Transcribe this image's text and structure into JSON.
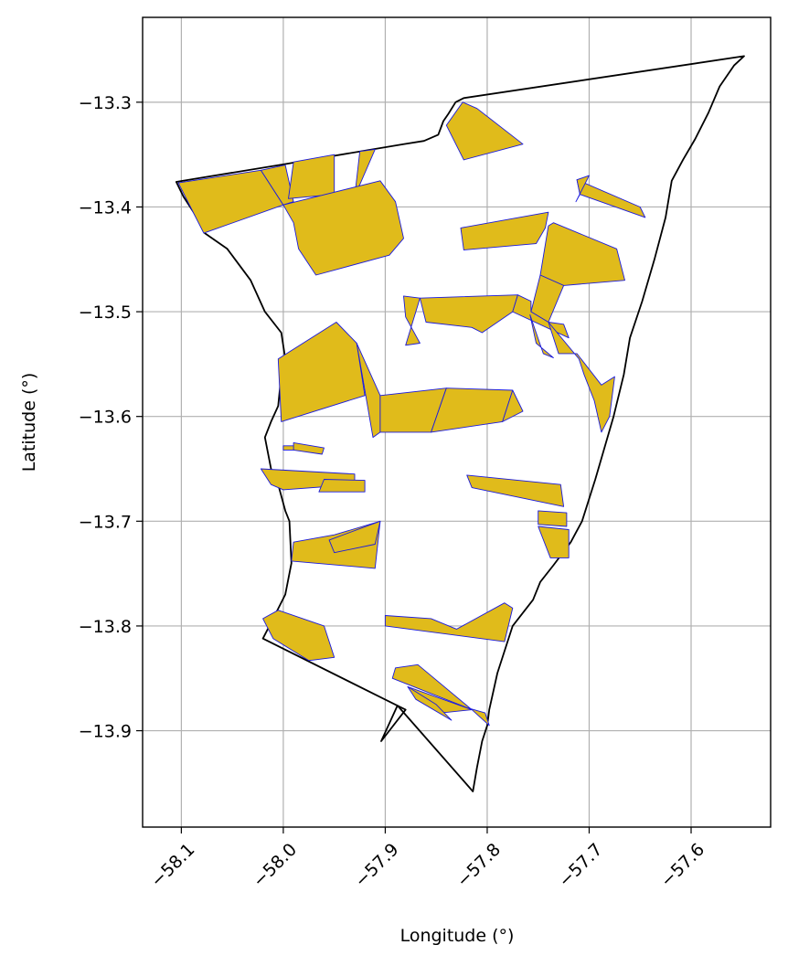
{
  "axes": {
    "x_label": "Longitude (°)",
    "y_label": "Latitude (°)",
    "x_ticks": [
      {
        "value": -58.1,
        "label": "−58.1"
      },
      {
        "value": -58.0,
        "label": "−58.0"
      },
      {
        "value": -57.9,
        "label": "−57.9"
      },
      {
        "value": -57.8,
        "label": "−57.8"
      },
      {
        "value": -57.7,
        "label": "−57.7"
      },
      {
        "value": -57.6,
        "label": "−57.6"
      }
    ],
    "y_ticks": [
      {
        "value": -13.3,
        "label": "−13.3"
      },
      {
        "value": -13.4,
        "label": "−13.4"
      },
      {
        "value": -13.5,
        "label": "−13.5"
      },
      {
        "value": -13.6,
        "label": "−13.6"
      },
      {
        "value": -13.7,
        "label": "−13.7"
      },
      {
        "value": -13.8,
        "label": "−13.8"
      },
      {
        "value": -13.9,
        "label": "−13.9"
      }
    ],
    "xlim": [
      -58.138,
      -57.522
    ],
    "ylim": [
      -13.992,
      -13.219
    ],
    "grid": true,
    "x_tick_rotation_deg": 45
  },
  "colors": {
    "boundary": "#000000",
    "parcel_fill": "#e0bb1b",
    "parcel_edge": "#1a1adf",
    "grid": "#b0b0b0"
  },
  "boundary": [
    [
      -58.105,
      -13.376
    ],
    [
      -57.998,
      -13.359
    ],
    [
      -57.882,
      -13.34
    ],
    [
      -57.862,
      -13.337
    ],
    [
      -57.848,
      -13.331
    ],
    [
      -57.843,
      -13.318
    ],
    [
      -57.838,
      -13.311
    ],
    [
      -57.831,
      -13.3
    ],
    [
      -57.823,
      -13.296
    ],
    [
      -57.548,
      -13.256
    ],
    [
      -57.558,
      -13.265
    ],
    [
      -57.572,
      -13.285
    ],
    [
      -57.583,
      -13.31
    ],
    [
      -57.596,
      -13.335
    ],
    [
      -57.608,
      -13.355
    ],
    [
      -57.619,
      -13.375
    ],
    [
      -57.625,
      -13.41
    ],
    [
      -57.636,
      -13.45
    ],
    [
      -57.648,
      -13.49
    ],
    [
      -57.66,
      -13.525
    ],
    [
      -57.666,
      -13.56
    ],
    [
      -57.676,
      -13.6
    ],
    [
      -57.688,
      -13.64
    ],
    [
      -57.694,
      -13.66
    ],
    [
      -57.707,
      -13.7
    ],
    [
      -57.718,
      -13.72
    ],
    [
      -57.735,
      -13.742
    ],
    [
      -57.748,
      -13.758
    ],
    [
      -57.755,
      -13.775
    ],
    [
      -57.775,
      -13.8
    ],
    [
      -57.79,
      -13.845
    ],
    [
      -57.798,
      -13.88
    ],
    [
      -57.8,
      -13.895
    ],
    [
      -57.805,
      -13.91
    ],
    [
      -57.81,
      -13.935
    ],
    [
      -57.814,
      -13.958
    ],
    [
      -57.888,
      -13.876
    ],
    [
      -57.904,
      -13.91
    ],
    [
      -57.88,
      -13.88
    ],
    [
      -58.02,
      -13.812
    ],
    [
      -58.01,
      -13.793
    ],
    [
      -57.998,
      -13.77
    ],
    [
      -57.992,
      -13.74
    ],
    [
      -57.994,
      -13.7
    ],
    [
      -57.998,
      -13.69
    ],
    [
      -58.005,
      -13.665
    ],
    [
      -58.012,
      -13.65
    ],
    [
      -58.018,
      -13.62
    ],
    [
      -58.012,
      -13.605
    ],
    [
      -58.005,
      -13.59
    ],
    [
      -58.002,
      -13.56
    ],
    [
      -57.998,
      -13.545
    ],
    [
      -58.002,
      -13.52
    ],
    [
      -58.018,
      -13.5
    ],
    [
      -58.032,
      -13.47
    ],
    [
      -58.055,
      -13.44
    ],
    [
      -58.077,
      -13.425
    ],
    [
      -58.088,
      -13.405
    ],
    [
      -58.098,
      -13.39
    ],
    [
      -58.105,
      -13.376
    ]
  ],
  "parcels": [
    [
      [
        -58.103,
        -13.377
      ],
      [
        -58.022,
        -13.365
      ],
      [
        -58.0,
        -13.398
      ],
      [
        -58.078,
        -13.425
      ]
    ],
    [
      [
        -58.022,
        -13.365
      ],
      [
        -57.998,
        -13.36
      ],
      [
        -57.99,
        -13.395
      ],
      [
        -58.0,
        -13.398
      ]
    ],
    [
      [
        -57.99,
        -13.357
      ],
      [
        -57.95,
        -13.35
      ],
      [
        -57.95,
        -13.388
      ],
      [
        -57.995,
        -13.392
      ]
    ],
    [
      [
        -57.925,
        -13.347
      ],
      [
        -57.91,
        -13.345
      ],
      [
        -57.93,
        -13.39
      ]
    ],
    [
      [
        -58.0,
        -13.398
      ],
      [
        -57.905,
        -13.375
      ],
      [
        -57.89,
        -13.395
      ],
      [
        -57.882,
        -13.43
      ],
      [
        -57.896,
        -13.446
      ],
      [
        -57.968,
        -13.465
      ],
      [
        -57.985,
        -13.44
      ],
      [
        -57.99,
        -13.415
      ]
    ],
    [
      [
        -57.84,
        -13.322
      ],
      [
        -57.824,
        -13.3
      ],
      [
        -57.81,
        -13.306
      ],
      [
        -57.765,
        -13.34
      ],
      [
        -57.823,
        -13.355
      ]
    ],
    [
      [
        -57.826,
        -13.42
      ],
      [
        -57.74,
        -13.405
      ],
      [
        -57.743,
        -13.42
      ],
      [
        -57.752,
        -13.435
      ],
      [
        -57.823,
        -13.441
      ]
    ],
    [
      [
        -57.712,
        -13.374
      ],
      [
        -57.65,
        -13.4
      ],
      [
        -57.645,
        -13.41
      ],
      [
        -57.709,
        -13.388
      ]
    ],
    [
      [
        -57.7,
        -13.37
      ],
      [
        -57.712,
        -13.374
      ],
      [
        -57.709,
        -13.388
      ],
      [
        -57.713,
        -13.395
      ]
    ],
    [
      [
        -57.735,
        -13.415
      ],
      [
        -57.74,
        -13.418
      ],
      [
        -57.748,
        -13.465
      ],
      [
        -57.725,
        -13.475
      ],
      [
        -57.665,
        -13.47
      ],
      [
        -57.673,
        -13.44
      ]
    ],
    [
      [
        -57.748,
        -13.465
      ],
      [
        -57.757,
        -13.5
      ],
      [
        -57.74,
        -13.51
      ],
      [
        -57.725,
        -13.475
      ]
    ],
    [
      [
        -57.866,
        -13.487
      ],
      [
        -57.882,
        -13.485
      ],
      [
        -57.88,
        -13.505
      ],
      [
        -57.866,
        -13.53
      ],
      [
        -57.88,
        -13.532
      ]
    ],
    [
      [
        -57.866,
        -13.487
      ],
      [
        -57.77,
        -13.484
      ],
      [
        -57.775,
        -13.5
      ],
      [
        -57.805,
        -13.52
      ],
      [
        -57.815,
        -13.515
      ],
      [
        -57.86,
        -13.51
      ]
    ],
    [
      [
        -57.77,
        -13.484
      ],
      [
        -57.757,
        -13.49
      ],
      [
        -57.757,
        -13.5
      ],
      [
        -57.74,
        -13.51
      ],
      [
        -57.725,
        -13.512
      ],
      [
        -57.72,
        -13.525
      ],
      [
        -57.775,
        -13.5
      ]
    ],
    [
      [
        -57.758,
        -13.503
      ],
      [
        -57.745,
        -13.54
      ],
      [
        -57.735,
        -13.544
      ],
      [
        -57.752,
        -13.53
      ]
    ],
    [
      [
        -57.74,
        -13.51
      ],
      [
        -57.73,
        -13.54
      ],
      [
        -57.712,
        -13.54
      ],
      [
        -57.688,
        -13.57
      ],
      [
        -57.675,
        -13.562
      ],
      [
        -57.68,
        -13.6
      ],
      [
        -57.688,
        -13.615
      ],
      [
        -57.695,
        -13.585
      ],
      [
        -57.705,
        -13.56
      ],
      [
        -57.71,
        -13.545
      ]
    ],
    [
      [
        -58.005,
        -13.545
      ],
      [
        -57.948,
        -13.51
      ],
      [
        -57.928,
        -13.53
      ],
      [
        -57.92,
        -13.58
      ],
      [
        -58.002,
        -13.605
      ]
    ],
    [
      [
        -57.928,
        -13.53
      ],
      [
        -57.905,
        -13.58
      ],
      [
        -57.905,
        -13.615
      ],
      [
        -57.912,
        -13.62
      ]
    ],
    [
      [
        -57.905,
        -13.58
      ],
      [
        -57.84,
        -13.573
      ],
      [
        -57.855,
        -13.615
      ],
      [
        -57.905,
        -13.615
      ]
    ],
    [
      [
        -57.84,
        -13.573
      ],
      [
        -57.775,
        -13.575
      ],
      [
        -57.785,
        -13.605
      ],
      [
        -57.855,
        -13.615
      ]
    ],
    [
      [
        -57.775,
        -13.575
      ],
      [
        -57.765,
        -13.595
      ],
      [
        -57.785,
        -13.605
      ]
    ],
    [
      [
        -58.0,
        -13.628
      ],
      [
        -57.98,
        -13.628
      ],
      [
        -57.98,
        -13.632
      ],
      [
        -58.0,
        -13.632
      ]
    ],
    [
      [
        -57.99,
        -13.625
      ],
      [
        -57.96,
        -13.63
      ],
      [
        -57.962,
        -13.636
      ],
      [
        -57.99,
        -13.632
      ]
    ],
    [
      [
        -58.022,
        -13.65
      ],
      [
        -57.93,
        -13.655
      ],
      [
        -57.93,
        -13.665
      ],
      [
        -58.0,
        -13.67
      ],
      [
        -58.012,
        -13.665
      ]
    ],
    [
      [
        -57.96,
        -13.66
      ],
      [
        -57.92,
        -13.661
      ],
      [
        -57.92,
        -13.672
      ],
      [
        -57.965,
        -13.672
      ]
    ],
    [
      [
        -57.82,
        -13.656
      ],
      [
        -57.728,
        -13.665
      ],
      [
        -57.725,
        -13.686
      ],
      [
        -57.815,
        -13.668
      ]
    ],
    [
      [
        -57.75,
        -13.69
      ],
      [
        -57.722,
        -13.692
      ],
      [
        -57.722,
        -13.705
      ],
      [
        -57.75,
        -13.703
      ]
    ],
    [
      [
        -57.75,
        -13.705
      ],
      [
        -57.72,
        -13.708
      ],
      [
        -57.72,
        -13.735
      ],
      [
        -57.738,
        -13.735
      ]
    ],
    [
      [
        -57.905,
        -13.7
      ],
      [
        -57.95,
        -13.713
      ],
      [
        -57.99,
        -13.72
      ],
      [
        -57.992,
        -13.738
      ],
      [
        -57.91,
        -13.745
      ]
    ],
    [
      [
        -57.905,
        -13.7
      ],
      [
        -57.955,
        -13.718
      ],
      [
        -57.95,
        -13.73
      ],
      [
        -57.91,
        -13.722
      ]
    ],
    [
      [
        -58.005,
        -13.785
      ],
      [
        -57.96,
        -13.8
      ],
      [
        -57.95,
        -13.83
      ],
      [
        -57.975,
        -13.833
      ],
      [
        -58.01,
        -13.812
      ],
      [
        -58.02,
        -13.793
      ]
    ],
    [
      [
        -57.9,
        -13.79
      ],
      [
        -57.855,
        -13.793
      ],
      [
        -57.83,
        -13.803
      ],
      [
        -57.783,
        -13.778
      ],
      [
        -57.775,
        -13.783
      ],
      [
        -57.783,
        -13.815
      ],
      [
        -57.9,
        -13.8
      ]
    ],
    [
      [
        -57.868,
        -13.837
      ],
      [
        -57.89,
        -13.84
      ],
      [
        -57.893,
        -13.85
      ],
      [
        -57.82,
        -13.878
      ],
      [
        -57.802,
        -13.883
      ],
      [
        -57.798,
        -13.895
      ],
      [
        -57.815,
        -13.88
      ]
    ],
    [
      [
        -57.878,
        -13.858
      ],
      [
        -57.815,
        -13.88
      ],
      [
        -57.845,
        -13.883
      ],
      [
        -57.868,
        -13.87
      ]
    ],
    [
      [
        -57.878,
        -13.858
      ],
      [
        -57.85,
        -13.875
      ],
      [
        -57.835,
        -13.89
      ],
      [
        -57.87,
        -13.87
      ]
    ]
  ]
}
